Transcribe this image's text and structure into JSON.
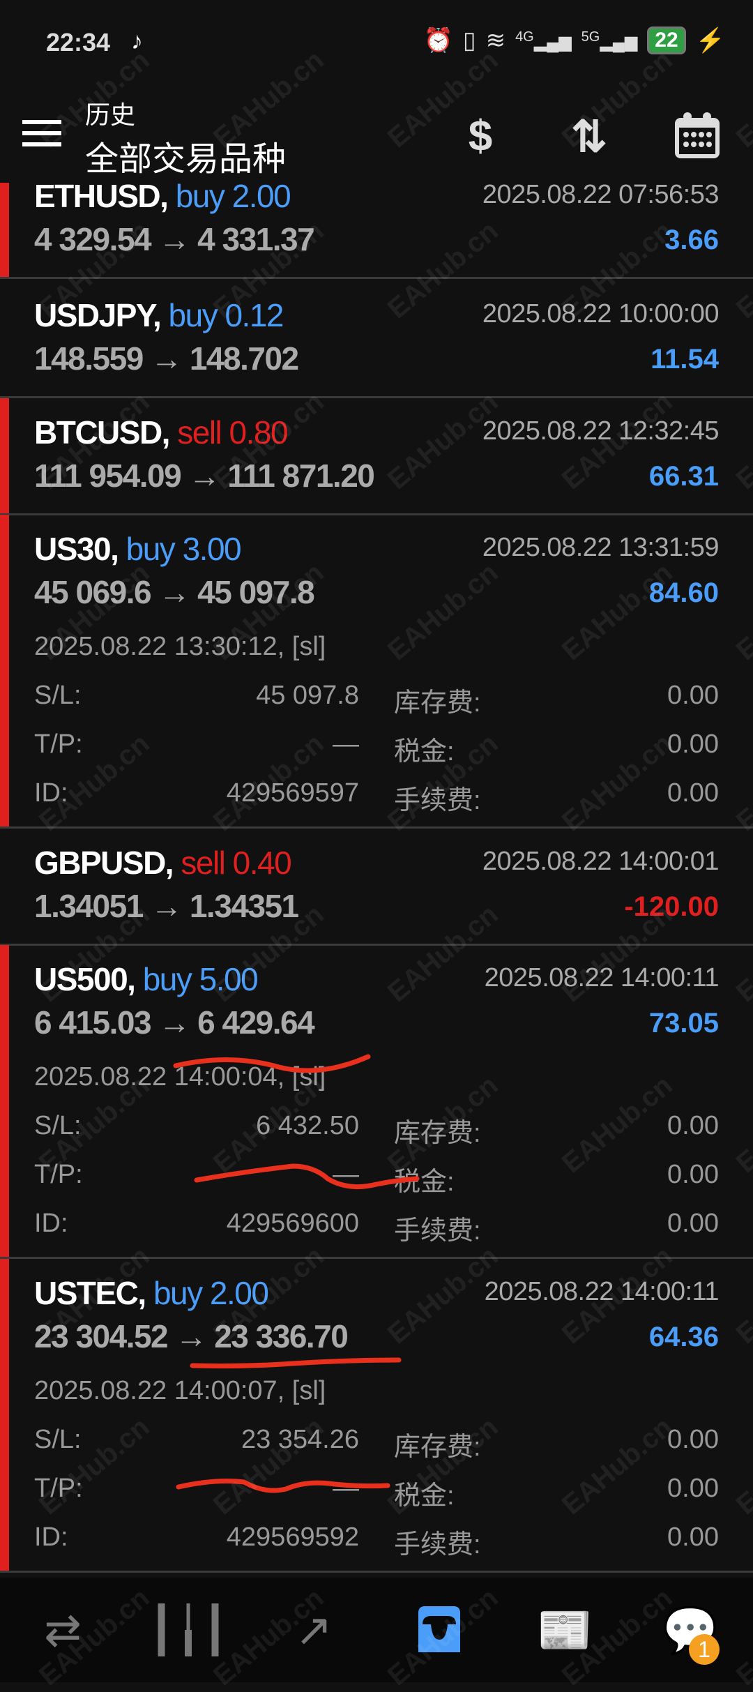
{
  "status_bar": {
    "time": "22:34",
    "battery": "22",
    "network_4g": "4G",
    "network_5g": "5G"
  },
  "header": {
    "subtitle": "历史",
    "title": "全部交易品种",
    "icons": [
      "menu-icon",
      "currency-exchange-icon",
      "sort-icon",
      "calendar-icon"
    ]
  },
  "watermark": "EAHub.cn",
  "labels": {
    "sl": "S/L:",
    "tp": "T/P:",
    "id": "ID:",
    "swap": "库存费:",
    "tax": "税金:",
    "commission": "手续费:"
  },
  "colors": {
    "buy": "#4a9df8",
    "sell": "#e0201e",
    "profit_pos": "#4a9df8",
    "profit_neg": "#e0201e",
    "accent": "#4a9df8",
    "badge": "#f5a020"
  },
  "trades": [
    {
      "symbol": "ETHUSD,",
      "side": "buy 2.00",
      "type": "buy",
      "time": "2025.08.22 07:56:53",
      "prices": "4 329.54 → 4 331.37",
      "profit": "3.66"
    },
    {
      "symbol": "USDJPY,",
      "side": "buy 0.12",
      "type": "buy",
      "time": "2025.08.22 10:00:00",
      "prices": "148.559 → 148.702",
      "profit": "11.54"
    },
    {
      "symbol": "BTCUSD,",
      "side": "sell 0.80",
      "type": "sell",
      "time": "2025.08.22 12:32:45",
      "prices": "111 954.09 → 111 871.20",
      "profit": "66.31"
    },
    {
      "symbol": "US30,",
      "side": "buy 3.00",
      "type": "buy",
      "time": "2025.08.22 13:31:59",
      "prices": "45 069.6 → 45 097.8",
      "profit": "84.60",
      "open_info": "2025.08.22 13:30:12, [sl]",
      "sl": "45 097.8",
      "tp": "—",
      "id": "429569597",
      "swap": "0.00",
      "tax": "0.00",
      "commission": "0.00"
    },
    {
      "symbol": "GBPUSD,",
      "side": "sell 0.40",
      "type": "sell",
      "time": "2025.08.22 14:00:01",
      "prices": "1.34051 → 1.34351",
      "profit": "-120.00"
    },
    {
      "symbol": "US500,",
      "side": "buy 5.00",
      "type": "buy",
      "time": "2025.08.22 14:00:11",
      "prices": "6 415.03 → 6 429.64",
      "profit": "73.05",
      "open_info": "2025.08.22 14:00:04, [sl]",
      "sl": "6 432.50",
      "tp": "—",
      "id": "429569600",
      "swap": "0.00",
      "tax": "0.00",
      "commission": "0.00"
    },
    {
      "symbol": "USTEC,",
      "side": "buy 2.00",
      "type": "buy",
      "time": "2025.08.22 14:00:11",
      "prices": "23 304.52 → 23 336.70",
      "profit": "64.36",
      "open_info": "2025.08.22 14:00:07, [sl]",
      "sl": "23 354.26",
      "tp": "—",
      "id": "429569592",
      "swap": "0.00",
      "tax": "0.00",
      "commission": "0.00"
    }
  ],
  "bottom_nav": {
    "items": [
      "quotes-icon",
      "chart-icon",
      "trade-icon",
      "history-icon",
      "news-icon",
      "messages-icon"
    ],
    "active": "history-icon",
    "messages_badge": "1"
  }
}
